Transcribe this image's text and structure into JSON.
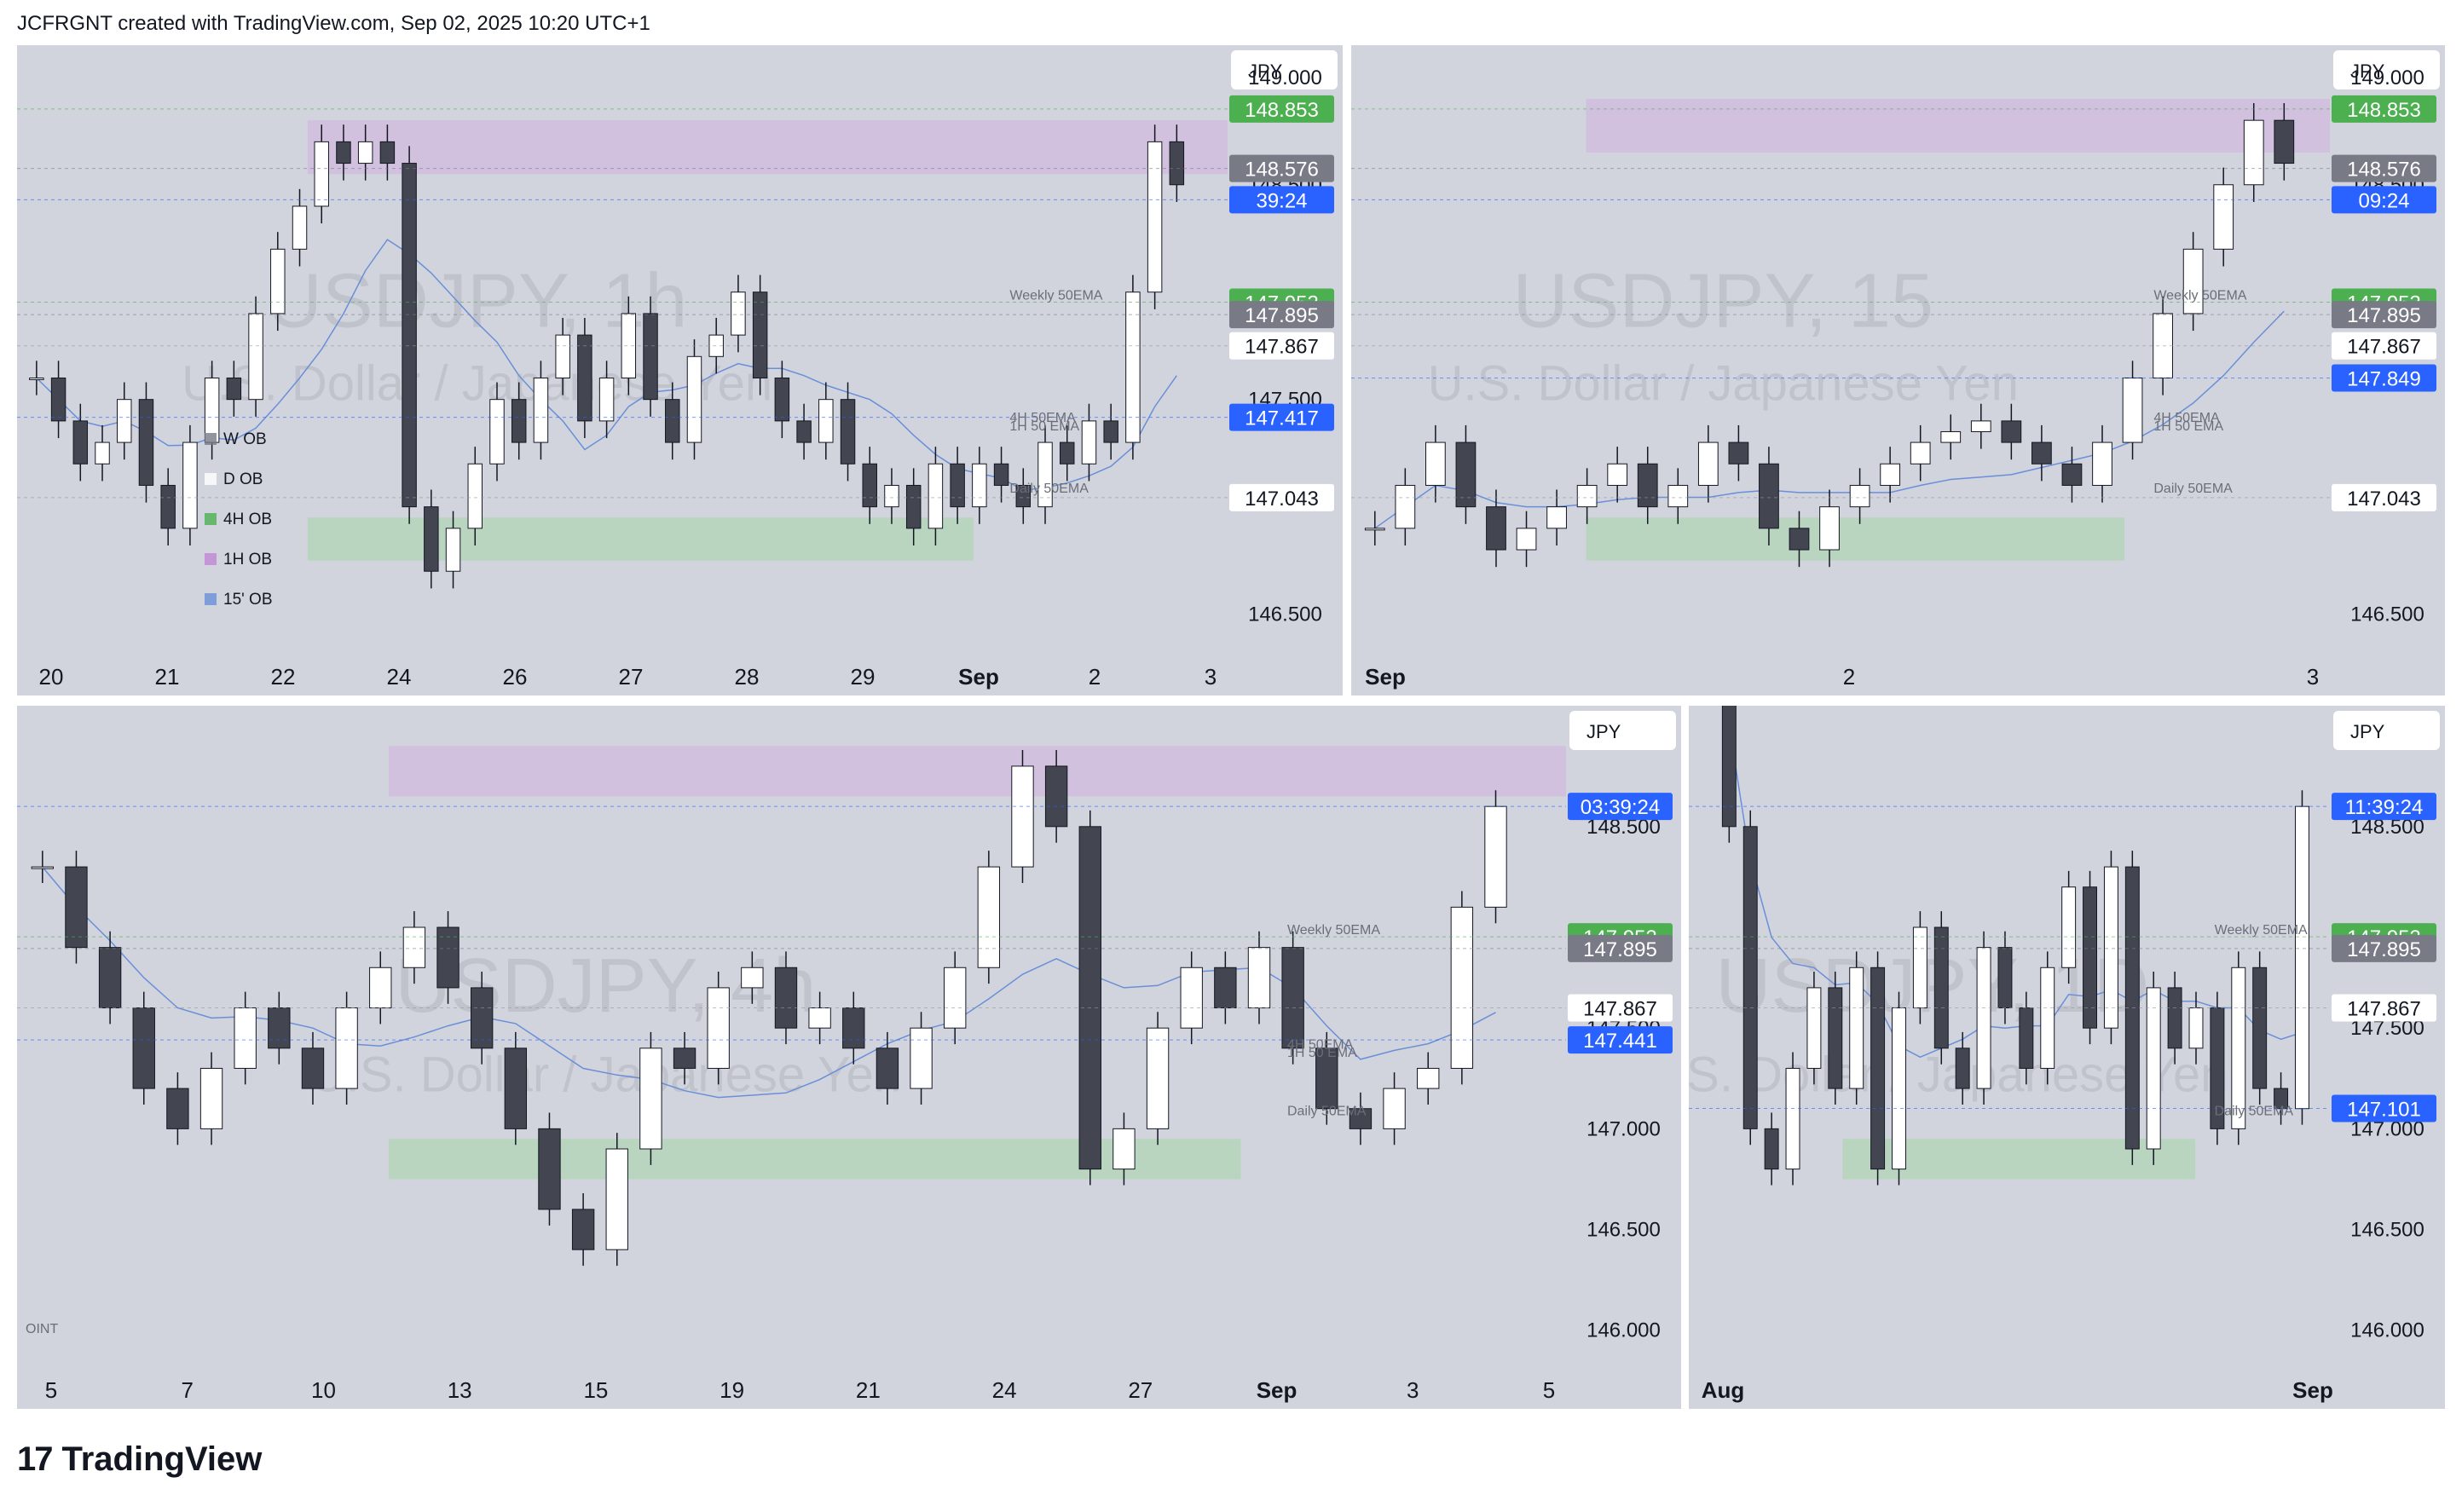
{
  "header": "JCFRGNT created with TradingView.com, Sep 02, 2025 10:20 UTC+1",
  "footer": {
    "logo": "17",
    "brand": "TradingView"
  },
  "colors": {
    "green_badge": "#4caf50",
    "grey_badge": "#787b86",
    "blue_badge": "#2962ff",
    "panel_bg": "#d1d4dc",
    "ob_green": "#a5d6a7",
    "ob_purple": "#d1b3e0",
    "ema": "#6a8fd8",
    "candle_down": "#434651"
  },
  "chart_data": [
    {
      "type": "candlestick",
      "panel": "top-left",
      "title": "USDJPY, 1h",
      "subtitle": "U.S. Dollar / Japanese Yen",
      "currency": "JPY",
      "ylim": [
        146.3,
        149.15
      ],
      "y_ticks": [
        149.0,
        148.5,
        147.5,
        146.5
      ],
      "x_ticks": [
        "20",
        "21",
        "22",
        "24",
        "26",
        "27",
        "28",
        "29",
        "Sep",
        "2",
        "3"
      ],
      "badges": [
        {
          "value": "148.853",
          "style": "green",
          "y": 148.853
        },
        {
          "value": "148.576",
          "style": "grey",
          "y": 148.576
        },
        {
          "value": "39:24",
          "style": "blue",
          "y": 148.43
        },
        {
          "value": "147.953",
          "style": "green",
          "y": 147.953
        },
        {
          "value": "147.895",
          "style": "grey",
          "y": 147.895
        },
        {
          "value": "147.867",
          "style": "white",
          "y": 147.75
        },
        {
          "value": "147.417",
          "style": "blue",
          "y": 147.417
        },
        {
          "value": "147.043",
          "style": "white",
          "y": 147.043
        }
      ],
      "legend": [
        "W OB",
        "D OB",
        "4H OB",
        "1H OB",
        "15' OB"
      ],
      "annotations": [
        "Weekly 50EMA",
        "4H 50EMA",
        "1H 50 EMA",
        "Daily 50EMA"
      ],
      "series": [
        {
          "name": "USDJPY",
          "close": [
            147.6,
            147.4,
            147.2,
            147.3,
            147.5,
            147.1,
            146.9,
            147.3,
            147.6,
            147.5,
            147.9,
            148.2,
            148.4,
            148.7,
            148.6,
            148.7,
            148.6,
            147.0,
            146.7,
            146.9,
            147.2,
            147.5,
            147.3,
            147.6,
            147.8,
            147.4,
            147.6,
            147.9,
            147.5,
            147.3,
            147.7,
            147.8,
            148.0,
            147.6,
            147.4,
            147.3,
            147.5,
            147.2,
            147.0,
            147.1,
            146.9,
            147.2,
            147.0,
            147.2,
            147.1,
            147.0,
            147.3,
            147.2,
            147.4,
            147.3,
            148.0,
            148.7,
            148.5
          ]
        }
      ]
    },
    {
      "type": "candlestick",
      "panel": "top-right",
      "title": "USDJPY, 15",
      "subtitle": "U.S. Dollar / Japanese Yen",
      "currency": "JPY",
      "ylim": [
        146.3,
        149.15
      ],
      "y_ticks": [
        149.0,
        148.5,
        146.5
      ],
      "x_ticks": [
        "Sep",
        "2",
        "3"
      ],
      "badges": [
        {
          "value": "148.853",
          "style": "green",
          "y": 148.853
        },
        {
          "value": "148.576",
          "style": "grey",
          "y": 148.576
        },
        {
          "value": "09:24",
          "style": "blue",
          "y": 148.43
        },
        {
          "value": "147.953",
          "style": "green",
          "y": 147.953
        },
        {
          "value": "147.895",
          "style": "grey",
          "y": 147.895
        },
        {
          "value": "147.867",
          "style": "white",
          "y": 147.75
        },
        {
          "value": "147.849",
          "style": "blue",
          "y": 147.6
        },
        {
          "value": "147.043",
          "style": "white",
          "y": 147.043
        }
      ],
      "annotations": [
        "Weekly 50EMA",
        "4H 50EMA",
        "1H 50 EMA",
        "Daily 50EMA"
      ],
      "series": [
        {
          "name": "USDJPY",
          "close": [
            146.9,
            147.1,
            147.3,
            147.0,
            146.8,
            146.9,
            147.0,
            147.1,
            147.2,
            147.0,
            147.1,
            147.3,
            147.2,
            146.9,
            146.8,
            147.0,
            147.1,
            147.2,
            147.3,
            147.35,
            147.4,
            147.3,
            147.2,
            147.1,
            147.3,
            147.6,
            147.9,
            148.2,
            148.5,
            148.8,
            148.6
          ]
        }
      ]
    },
    {
      "type": "candlestick",
      "panel": "bottom-left",
      "title": "USDJPY, 4h",
      "subtitle": "U.S. Dollar / Japanese Yen",
      "currency": "JPY",
      "ylim": [
        145.8,
        149.1
      ],
      "y_ticks": [
        148.5,
        147.5,
        147.0,
        146.5,
        146.0
      ],
      "x_ticks": [
        "5",
        "7",
        "10",
        "13",
        "15",
        "19",
        "21",
        "24",
        "27",
        "Sep",
        "3",
        "5"
      ],
      "badges": [
        {
          "value": "03:39:24",
          "style": "blue",
          "y": 148.6
        },
        {
          "value": "147.953",
          "style": "green",
          "y": 147.953
        },
        {
          "value": "147.895",
          "style": "grey",
          "y": 147.895
        },
        {
          "value": "147.867",
          "style": "white",
          "y": 147.6
        },
        {
          "value": "147.441",
          "style": "blue",
          "y": 147.441
        }
      ],
      "annotations": [
        "Weekly 50EMA",
        "4H 50EMA",
        "1H 50 EMA",
        "Daily 50EMA",
        "OINT"
      ],
      "series": [
        {
          "name": "USDJPY",
          "close": [
            148.3,
            147.9,
            147.6,
            147.2,
            147.0,
            147.3,
            147.6,
            147.4,
            147.2,
            147.6,
            147.8,
            148.0,
            147.7,
            147.4,
            147.0,
            146.6,
            146.4,
            146.9,
            147.4,
            147.3,
            147.7,
            147.8,
            147.5,
            147.6,
            147.4,
            147.2,
            147.5,
            147.8,
            148.3,
            148.8,
            148.5,
            146.8,
            147.0,
            147.5,
            147.8,
            147.6,
            147.9,
            147.4,
            147.1,
            147.0,
            147.2,
            147.3,
            148.1,
            148.6
          ]
        }
      ]
    },
    {
      "type": "candlestick",
      "panel": "bottom-right",
      "title": "USDJPY, 1D",
      "subtitle": "U.S. Dollar / Japanese Yen",
      "currency": "JPY",
      "ylim": [
        145.8,
        149.1
      ],
      "y_ticks": [
        148.5,
        147.5,
        147.0,
        146.5,
        146.0
      ],
      "x_ticks": [
        "Aug",
        "Sep"
      ],
      "badges": [
        {
          "value": "11:39:24",
          "style": "blue",
          "y": 148.6
        },
        {
          "value": "147.953",
          "style": "green",
          "y": 147.953
        },
        {
          "value": "147.895",
          "style": "grey",
          "y": 147.895
        },
        {
          "value": "147.867",
          "style": "white",
          "y": 147.6
        },
        {
          "value": "147.101",
          "style": "blue",
          "y": 147.101
        }
      ],
      "annotations": [
        "Weekly 50EMA",
        "Daily 50EMA"
      ],
      "series": [
        {
          "name": "USDJPY",
          "close": [
            149.5,
            148.5,
            147.0,
            146.8,
            147.3,
            147.7,
            147.2,
            147.8,
            146.8,
            147.6,
            148.0,
            147.4,
            147.2,
            147.9,
            147.6,
            147.3,
            147.8,
            148.2,
            147.5,
            148.3,
            146.9,
            147.7,
            147.4,
            147.6,
            147.0,
            147.8,
            147.2,
            147.1,
            148.6
          ]
        }
      ]
    }
  ]
}
